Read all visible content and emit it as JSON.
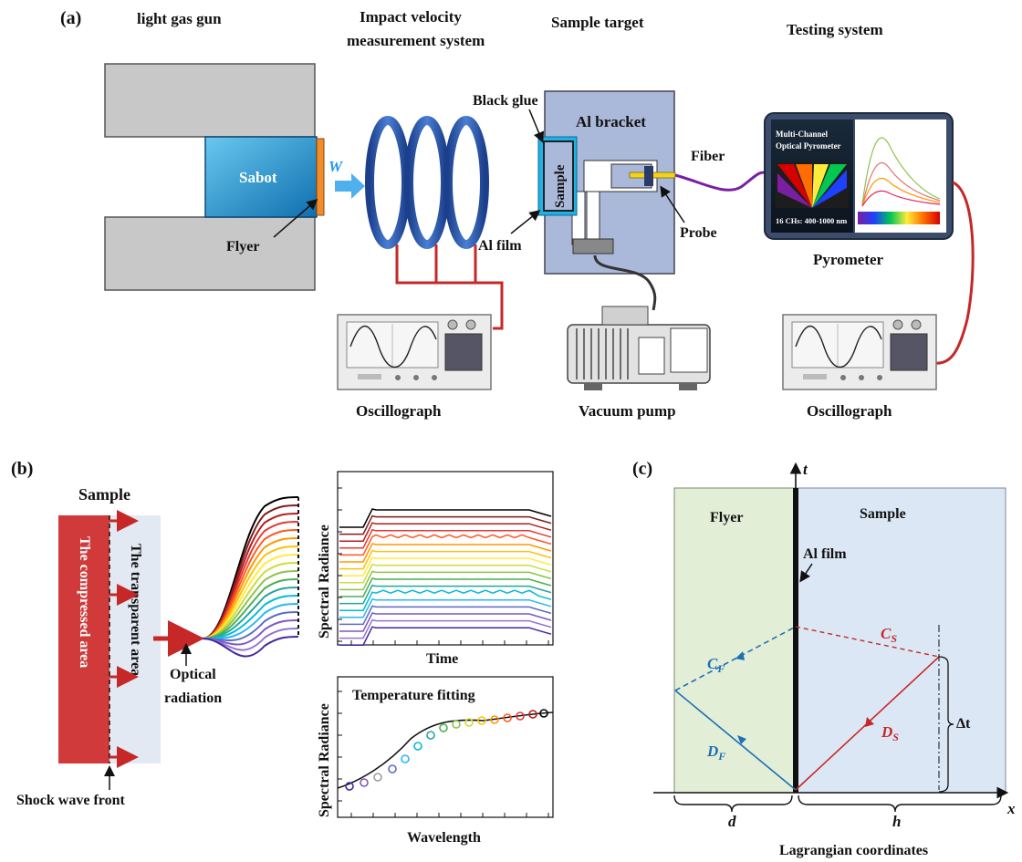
{
  "panel_a": {
    "tag": "(a)",
    "col_gun": "light gas gun",
    "col_velocity_1": "Impact velocity",
    "col_velocity_2": "measurement system",
    "col_target": "Sample target",
    "col_testing": "Testing system",
    "sabot": "Sabot",
    "flyer": "Flyer",
    "w": "W",
    "black_glue": "Black glue",
    "al_bracket": "Al bracket",
    "sample": "Sample",
    "al_film": "Al film",
    "fiber": "Fiber",
    "probe": "Probe",
    "pyro_line1": "Multi-Channel",
    "pyro_line2": "Optical Pyrometer",
    "pyro_channels": "16 CHs: 400-1000 nm",
    "pyrometer": "Pyrometer",
    "oscillograph_left": "Oscillograph",
    "vacuum_pump": "Vacuum pump",
    "oscillograph_right": "Oscillograph"
  },
  "panel_b": {
    "tag": "(b)",
    "sample": "Sample",
    "compressed": "The compressed area",
    "transparent": "The transparent area",
    "optical_1": "Optical",
    "optical_2": "radiation",
    "shock_front": "Shock wave front",
    "radiance_ylabel": "Spectral Radiance",
    "time_xlabel": "Time",
    "fit_title": "Temperature fitting",
    "fit_ylabel": "Spectral Radiance",
    "fit_xlabel": "Wavelength"
  },
  "panel_c": {
    "tag": "(c)",
    "flyer": "Flyer",
    "sample": "Sample",
    "al_film": "Al film",
    "cf": "C",
    "cf_sub": "F",
    "df": "D",
    "df_sub": "F",
    "cs": "C",
    "cs_sub": "S",
    "ds": "D",
    "ds_sub": "S",
    "dt": "Δt",
    "t_axis": "t",
    "x_axis": "x",
    "d": "d",
    "h": "h",
    "lagrangian": "Lagrangian coordinates"
  },
  "colors": {
    "red": "#c62828",
    "blue_ring": "#2f5fb5",
    "flyer_bg": "#e3eed7",
    "sample_bg": "#dbe7f4",
    "dashed_blue": "#1f6fb5"
  }
}
